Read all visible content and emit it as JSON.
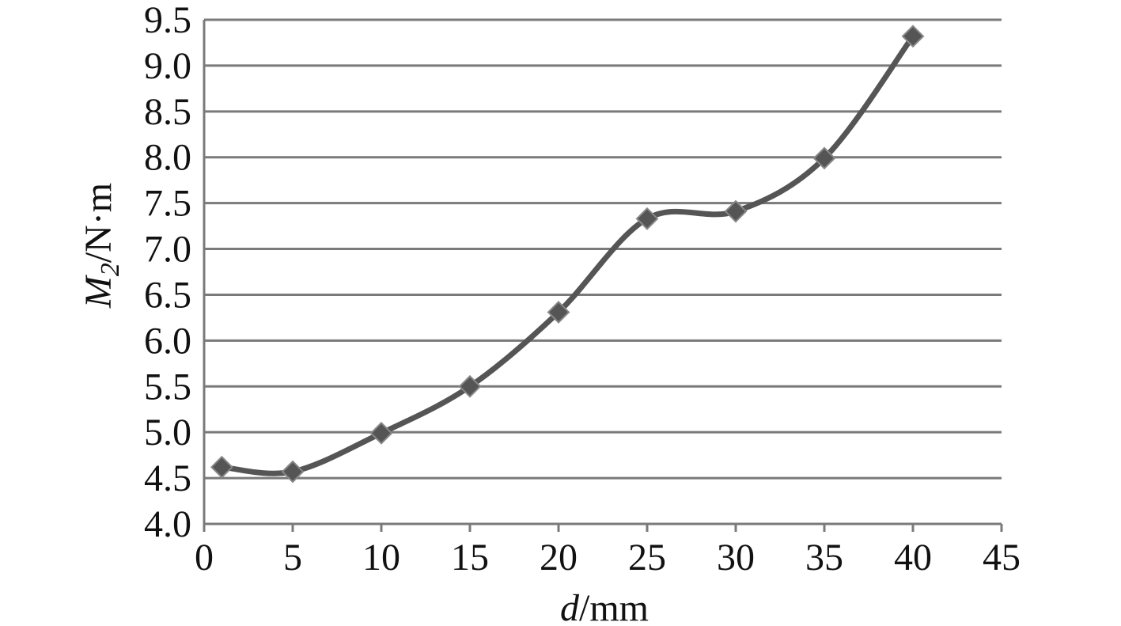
{
  "chart_data": {
    "type": "line",
    "title": "",
    "xlabel": {
      "var": "d",
      "unit": "/mm"
    },
    "ylabel": {
      "var": "M",
      "sub": "2",
      "unit": "/N·m"
    },
    "xlim": [
      0,
      45
    ],
    "ylim": [
      4.0,
      9.5
    ],
    "x_ticks": [
      0,
      5,
      10,
      15,
      20,
      25,
      30,
      35,
      40,
      45
    ],
    "x_tick_labels": [
      "0",
      "5",
      "10",
      "15",
      "20",
      "25",
      "30",
      "35",
      "40",
      "45"
    ],
    "y_ticks": [
      4.0,
      4.5,
      5.0,
      5.5,
      6.0,
      6.5,
      7.0,
      7.5,
      8.0,
      8.5,
      9.0,
      9.5
    ],
    "y_tick_labels": [
      "4.0",
      "4.5",
      "5.0",
      "5.5",
      "6.0",
      "6.5",
      "7.0",
      "7.5",
      "8.0",
      "8.5",
      "9.0",
      "9.5"
    ],
    "grid": "horizontal",
    "legend": "none",
    "series": [
      {
        "x": [
          1,
          5,
          10,
          15,
          20,
          25,
          30,
          35,
          40
        ],
        "y": [
          4.62,
          4.57,
          4.99,
          5.5,
          6.31,
          7.33,
          7.41,
          7.99,
          9.32
        ],
        "color": "#555555",
        "marker": "diamond",
        "smooth": true
      }
    ]
  }
}
